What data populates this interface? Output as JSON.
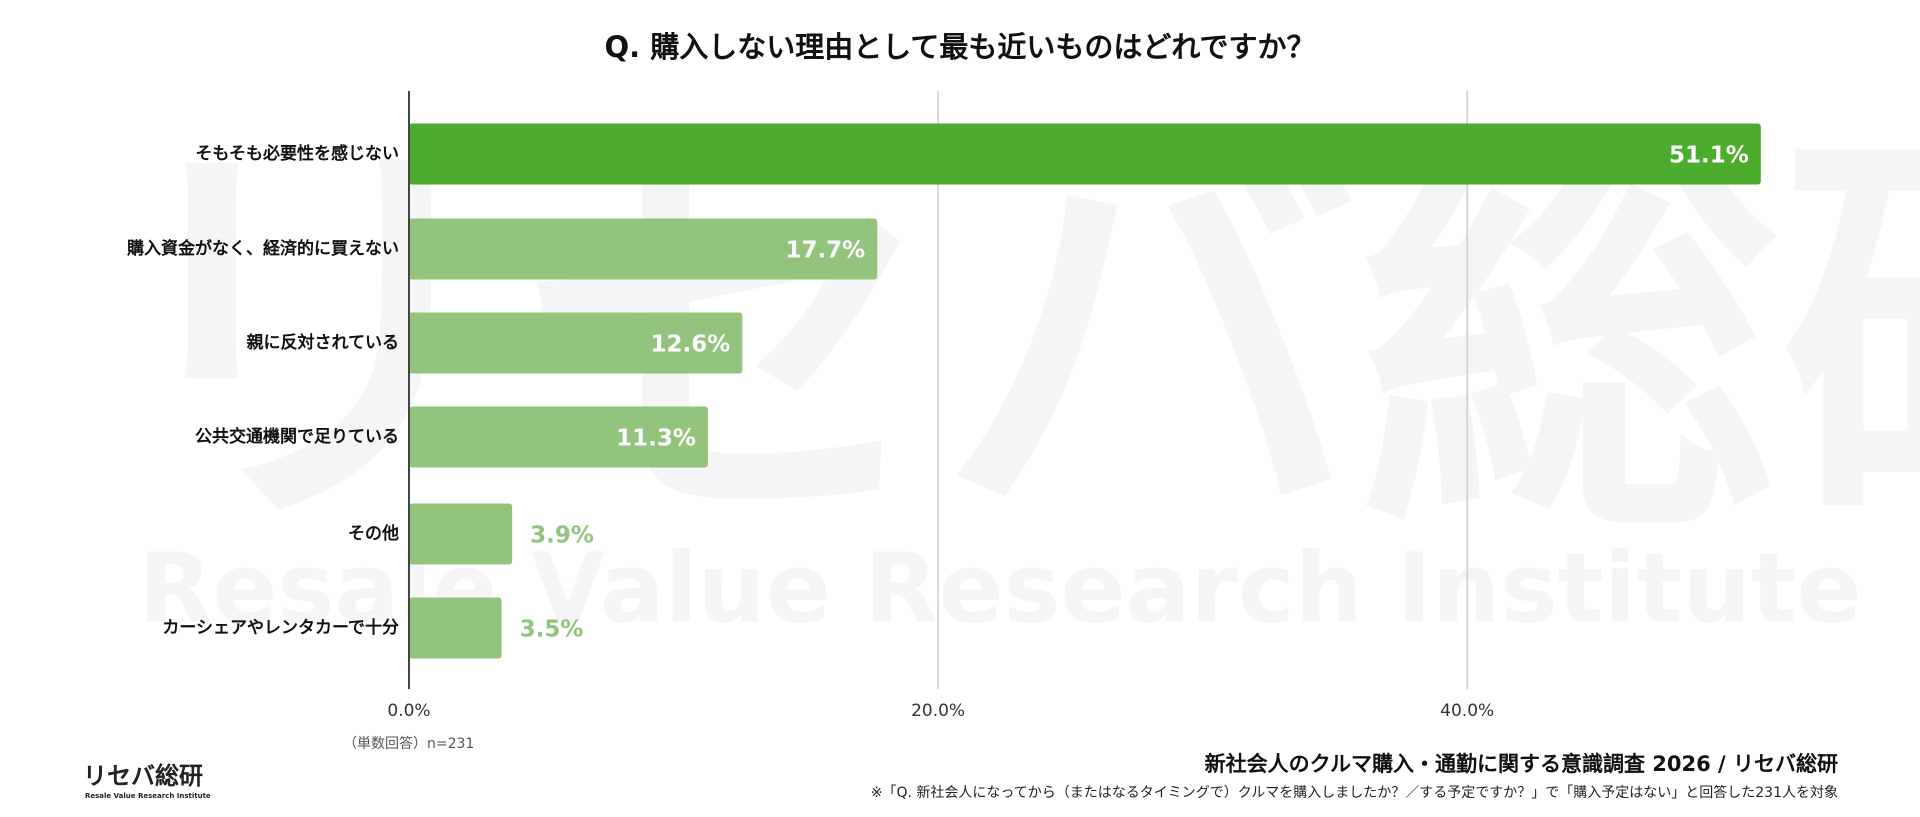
{
  "chart_data": {
    "type": "bar",
    "orientation": "horizontal",
    "title": "Q. 購入しない理由として最も近いものはどれですか？",
    "categories": [
      "そもそも必要性を感じない",
      "購入資金がなく、経済的に買えない",
      "親に反対されている",
      "公共交通機関で足りている",
      "その他",
      "カーシェアやレンタカーで十分"
    ],
    "values": [
      51.1,
      17.7,
      12.6,
      11.3,
      3.9,
      3.5
    ],
    "value_labels": [
      "51.1%",
      "17.7%",
      "12.6%",
      "11.3%",
      "3.9%",
      "3.5%"
    ],
    "colors": [
      "#4cac2c",
      "#93c47d",
      "#93c47d",
      "#93c47d",
      "#93c47d",
      "#93c47d"
    ],
    "xlim": [
      0,
      55
    ],
    "xticks": [
      {
        "value": 0,
        "label": "0.0%"
      },
      {
        "value": 20,
        "label": "20.0%"
      },
      {
        "value": 40,
        "label": "40.0%"
      }
    ],
    "grid": true,
    "note_left": "（単数回答）n=231",
    "source": "新社会人のクルマ購入・通勤に関する意識調査 2026 / リセバ総研",
    "footnote": "※「Q. 新社会人になってから（またはなるタイミングで）クルマを購入しましたか？／する予定ですか？」で「購入予定はない」と回答した231人を対象",
    "logo": "リセバ総研",
    "logo_sub": "Resale Value Research Institute",
    "watermark": "リセバ総研",
    "watermark_sub": "Resale Value Research Institute"
  }
}
